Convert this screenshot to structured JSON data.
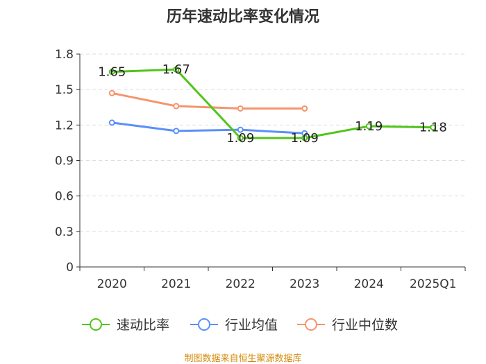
{
  "title": "历年速动比率变化情况",
  "source": "制图数据来自恒生聚源数据库",
  "colors": {
    "speed_ratio": "#52c41a",
    "industry_avg": "#5b8ff9",
    "industry_median": "#f6946b",
    "source_text": "#d48806",
    "axis": "#333333",
    "grid": "#dddddd"
  },
  "chart_data": {
    "type": "line",
    "categories": [
      "2020",
      "2021",
      "2022",
      "2023",
      "2024",
      "2025Q1"
    ],
    "ylim": [
      0,
      1.8
    ],
    "yticks": [
      "0",
      "0.3",
      "0.6",
      "0.9",
      "1.2",
      "1.5",
      "1.8"
    ],
    "grid": true,
    "legend_position": "bottom",
    "series": [
      {
        "name": "速动比率",
        "values": [
          1.65,
          1.67,
          1.09,
          1.09,
          1.19,
          1.18
        ],
        "labels": [
          "1.65",
          "1.67",
          "1.09",
          "1.09",
          "1.19",
          "1.18"
        ]
      },
      {
        "name": "行业均值",
        "values": [
          1.22,
          1.15,
          1.16,
          1.13,
          null,
          null
        ]
      },
      {
        "name": "行业中位数",
        "values": [
          1.47,
          1.36,
          1.34,
          1.34,
          null,
          null
        ]
      }
    ]
  }
}
